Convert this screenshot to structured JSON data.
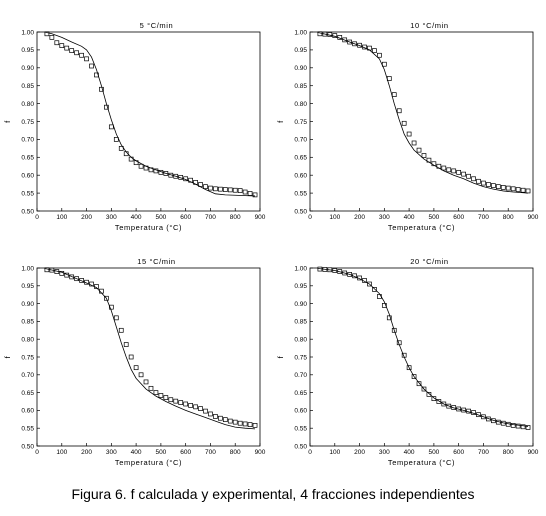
{
  "caption": "Figura 6. f calculada y experimental, 4 fracciones independientes",
  "chart_data": [
    {
      "type": "line",
      "title": "5 °C/min",
      "xlabel": "Temperatura (°C)",
      "ylabel": "f",
      "xlim": [
        0,
        900
      ],
      "ylim": [
        0.5,
        1.0
      ],
      "xticks": [
        0,
        100,
        200,
        300,
        400,
        500,
        600,
        700,
        800,
        900
      ],
      "yticks": [
        0.5,
        0.55,
        0.6,
        0.65,
        0.7,
        0.75,
        0.8,
        0.85,
        0.9,
        0.95,
        1.0
      ],
      "grid": false,
      "series": [
        {
          "style": "markers",
          "x": [
            40,
            60,
            80,
            100,
            120,
            140,
            160,
            180,
            200,
            220,
            240,
            260,
            280,
            300,
            320,
            340,
            360,
            380,
            400,
            420,
            440,
            460,
            480,
            500,
            520,
            540,
            560,
            580,
            600,
            620,
            640,
            660,
            680,
            700,
            720,
            740,
            760,
            780,
            800,
            820,
            840,
            860,
            880
          ],
          "y": [
            0.995,
            0.985,
            0.97,
            0.962,
            0.955,
            0.948,
            0.942,
            0.935,
            0.925,
            0.905,
            0.88,
            0.84,
            0.79,
            0.735,
            0.7,
            0.675,
            0.66,
            0.645,
            0.635,
            0.625,
            0.62,
            0.615,
            0.612,
            0.608,
            0.605,
            0.6,
            0.597,
            0.594,
            0.59,
            0.586,
            0.58,
            0.574,
            0.568,
            0.564,
            0.562,
            0.561,
            0.56,
            0.559,
            0.558,
            0.557,
            0.553,
            0.549,
            0.545
          ]
        },
        {
          "style": "line",
          "x": [
            30,
            60,
            100,
            140,
            180,
            200,
            220,
            240,
            260,
            280,
            300,
            320,
            340,
            360,
            380,
            400,
            440,
            480,
            520,
            560,
            600,
            640,
            680,
            720,
            760,
            800,
            840,
            880
          ],
          "y": [
            1.0,
            0.995,
            0.985,
            0.972,
            0.96,
            0.95,
            0.93,
            0.895,
            0.85,
            0.8,
            0.755,
            0.715,
            0.685,
            0.665,
            0.65,
            0.64,
            0.625,
            0.615,
            0.605,
            0.597,
            0.588,
            0.575,
            0.56,
            0.548,
            0.545,
            0.544,
            0.543,
            0.542
          ]
        }
      ]
    },
    {
      "type": "line",
      "title": "10 °C/min",
      "xlabel": "Temperatura (°C)",
      "ylabel": "f",
      "xlim": [
        0,
        900
      ],
      "ylim": [
        0.5,
        1.0
      ],
      "xticks": [
        0,
        100,
        200,
        300,
        400,
        500,
        600,
        700,
        800,
        900
      ],
      "yticks": [
        0.5,
        0.55,
        0.6,
        0.65,
        0.7,
        0.75,
        0.8,
        0.85,
        0.9,
        0.95,
        1.0
      ],
      "grid": false,
      "series": [
        {
          "style": "markers",
          "x": [
            40,
            60,
            80,
            100,
            120,
            140,
            160,
            180,
            200,
            220,
            240,
            260,
            280,
            300,
            320,
            340,
            360,
            380,
            400,
            420,
            440,
            460,
            480,
            500,
            520,
            540,
            560,
            580,
            600,
            620,
            640,
            660,
            680,
            700,
            720,
            740,
            760,
            780,
            800,
            820,
            840,
            860,
            880
          ],
          "y": [
            0.995,
            0.994,
            0.993,
            0.99,
            0.985,
            0.978,
            0.972,
            0.967,
            0.963,
            0.958,
            0.955,
            0.948,
            0.935,
            0.91,
            0.87,
            0.825,
            0.78,
            0.745,
            0.715,
            0.69,
            0.67,
            0.655,
            0.642,
            0.632,
            0.625,
            0.62,
            0.615,
            0.612,
            0.608,
            0.603,
            0.597,
            0.59,
            0.583,
            0.578,
            0.574,
            0.571,
            0.568,
            0.566,
            0.564,
            0.562,
            0.56,
            0.558,
            0.556
          ]
        },
        {
          "style": "line",
          "x": [
            30,
            100,
            160,
            200,
            240,
            280,
            300,
            320,
            340,
            360,
            380,
            400,
            420,
            460,
            500,
            540,
            580,
            620,
            660,
            700,
            740,
            780,
            820,
            860,
            880
          ],
          "y": [
            0.999,
            0.988,
            0.972,
            0.962,
            0.95,
            0.925,
            0.895,
            0.85,
            0.8,
            0.755,
            0.715,
            0.69,
            0.67,
            0.645,
            0.628,
            0.612,
            0.6,
            0.59,
            0.578,
            0.568,
            0.561,
            0.556,
            0.553,
            0.551,
            0.55
          ]
        }
      ]
    },
    {
      "type": "line",
      "title": "15 °C/min",
      "xlabel": "Temperatura (°C)",
      "ylabel": "f",
      "xlim": [
        0,
        900
      ],
      "ylim": [
        0.5,
        1.0
      ],
      "xticks": [
        0,
        100,
        200,
        300,
        400,
        500,
        600,
        700,
        800,
        900
      ],
      "yticks": [
        0.5,
        0.55,
        0.6,
        0.65,
        0.7,
        0.75,
        0.8,
        0.85,
        0.9,
        0.95,
        1.0
      ],
      "grid": false,
      "series": [
        {
          "style": "markers",
          "x": [
            40,
            60,
            80,
            100,
            120,
            140,
            160,
            180,
            200,
            220,
            240,
            260,
            280,
            300,
            320,
            340,
            360,
            380,
            400,
            420,
            440,
            460,
            480,
            500,
            520,
            540,
            560,
            580,
            600,
            620,
            640,
            660,
            680,
            700,
            720,
            740,
            760,
            780,
            800,
            820,
            840,
            860,
            880
          ],
          "y": [
            0.995,
            0.994,
            0.99,
            0.985,
            0.98,
            0.975,
            0.97,
            0.965,
            0.96,
            0.955,
            0.948,
            0.935,
            0.915,
            0.89,
            0.86,
            0.825,
            0.785,
            0.75,
            0.72,
            0.7,
            0.68,
            0.662,
            0.65,
            0.642,
            0.636,
            0.63,
            0.626,
            0.622,
            0.618,
            0.614,
            0.61,
            0.605,
            0.598,
            0.59,
            0.583,
            0.578,
            0.574,
            0.57,
            0.567,
            0.564,
            0.562,
            0.56,
            0.558
          ]
        },
        {
          "style": "line",
          "x": [
            30,
            100,
            160,
            200,
            240,
            280,
            300,
            320,
            340,
            360,
            380,
            400,
            440,
            480,
            520,
            560,
            600,
            640,
            680,
            720,
            760,
            800,
            840,
            880
          ],
          "y": [
            0.999,
            0.988,
            0.97,
            0.958,
            0.945,
            0.915,
            0.88,
            0.835,
            0.79,
            0.75,
            0.715,
            0.69,
            0.66,
            0.64,
            0.625,
            0.612,
            0.6,
            0.59,
            0.58,
            0.57,
            0.56,
            0.553,
            0.55,
            0.548
          ]
        }
      ]
    },
    {
      "type": "line",
      "title": "20 °C/min",
      "xlabel": "Temperatura (°C)",
      "ylabel": "f",
      "xlim": [
        0,
        900
      ],
      "ylim": [
        0.5,
        1.0
      ],
      "xticks": [
        0,
        100,
        200,
        300,
        400,
        500,
        600,
        700,
        800,
        900
      ],
      "yticks": [
        0.5,
        0.55,
        0.6,
        0.65,
        0.7,
        0.75,
        0.8,
        0.85,
        0.9,
        0.95,
        1.0
      ],
      "grid": false,
      "series": [
        {
          "style": "markers",
          "x": [
            40,
            60,
            80,
            100,
            120,
            140,
            160,
            180,
            200,
            220,
            240,
            260,
            280,
            300,
            320,
            340,
            360,
            380,
            400,
            420,
            440,
            460,
            480,
            500,
            520,
            540,
            560,
            580,
            600,
            620,
            640,
            660,
            680,
            700,
            720,
            740,
            760,
            780,
            800,
            820,
            840,
            860,
            880
          ],
          "y": [
            0.997,
            0.996,
            0.995,
            0.993,
            0.99,
            0.986,
            0.982,
            0.978,
            0.972,
            0.965,
            0.955,
            0.94,
            0.92,
            0.895,
            0.86,
            0.825,
            0.79,
            0.755,
            0.72,
            0.695,
            0.675,
            0.66,
            0.645,
            0.633,
            0.625,
            0.618,
            0.612,
            0.608,
            0.604,
            0.601,
            0.598,
            0.594,
            0.588,
            0.582,
            0.576,
            0.571,
            0.567,
            0.564,
            0.561,
            0.558,
            0.556,
            0.554,
            0.552
          ]
        },
        {
          "style": "line",
          "x": [
            30,
            100,
            160,
            200,
            240,
            280,
            300,
            320,
            340,
            360,
            380,
            400,
            420,
            460,
            500,
            540,
            580,
            620,
            660,
            700,
            740,
            780,
            820,
            860,
            880
          ],
          "y": [
            0.999,
            0.993,
            0.982,
            0.97,
            0.955,
            0.928,
            0.905,
            0.87,
            0.825,
            0.785,
            0.75,
            0.72,
            0.695,
            0.66,
            0.635,
            0.618,
            0.607,
            0.6,
            0.592,
            0.582,
            0.572,
            0.565,
            0.56,
            0.557,
            0.555
          ]
        }
      ]
    }
  ]
}
